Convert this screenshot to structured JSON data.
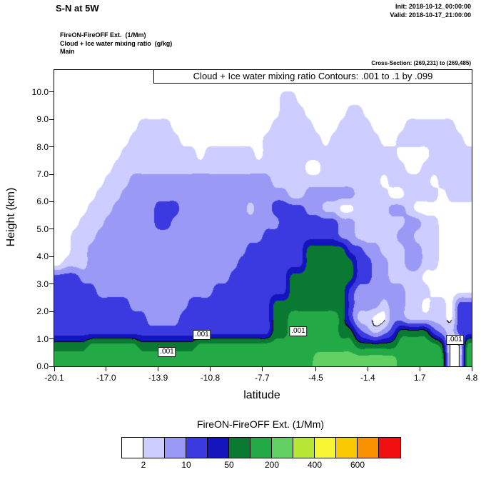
{
  "header": {
    "title": "S-N at 5W",
    "init_time": "Init: 2018-10-12_00:00:00",
    "valid_time": "Valid: 2018-10-17_21:00:00",
    "info_lines": [
      "FireON-FireOFF Ext.  (1/Mm)",
      "Cloud + Ice water mixing ratio  (g/kg)",
      "Main"
    ],
    "cross_section": "Cross-Section: (269,231) to (269,485)"
  },
  "chart_data": {
    "type": "heatmap",
    "title": "Cloud + Ice water mixing ratio Contours: .001 to .1 by .099",
    "xlabel": "latitude",
    "ylabel": "Height (km)",
    "xlim": [
      -20.1,
      4.8
    ],
    "ylim": [
      0,
      10.8
    ],
    "x_ticks": [
      -20.1,
      -17.0,
      -13.9,
      -10.8,
      -7.7,
      -4.5,
      -1.4,
      1.7,
      4.8
    ],
    "x_tick_labels": [
      "-20.1",
      "-17.0",
      "-13.9",
      "-10.8",
      "-7.7",
      "-4.5",
      "-1.4",
      "1.7",
      "4.8"
    ],
    "y_ticks": [
      0,
      1,
      2,
      3,
      4,
      5,
      6,
      7,
      8,
      9,
      10
    ],
    "y_tick_labels": [
      "0.0",
      "1.0",
      "2.0",
      "3.0",
      "4.0",
      "5.0",
      "6.0",
      "7.0",
      "8.0",
      "9.0",
      "10.0"
    ],
    "contour_labels": [
      ".001",
      ".001",
      ".001",
      ".001"
    ],
    "palette": [
      "#ffffff",
      "#cdcdff",
      "#9a9af6",
      "#3a3ae0",
      "#1414bc",
      "#0a7a32",
      "#23aa46",
      "#62d062",
      "#b8e634",
      "#f6f632",
      "#f8c800",
      "#f89000",
      "#f01010"
    ],
    "grid_alt_range": [
      0,
      11
    ],
    "grid": [
      "00000000000000000000000000000000000000000000000000",
      "00000000000000000000000000000000000000000000000000",
      "00000000000000000000000000011000000000000000000000",
      "00000000000000000000000000011100000110000000000000",
      "00000000001111000000000000111110001111000011111100",
      "00000000011111100000000001111111011111100111111110",
      "00000000111111111011111101111111111111111000011111",
      "00000001111111111111111111111100111111111100111111",
      "00000011122222222222222222111111111111101111101111",
      "00000111222222222222222222221122222211110011110111",
      "00001112222233322222222122333322110011112210000000",
      "00011122222233222222222222233333332211111122110000",
      "00111222222222222222222223333333332211111221110000",
      "00112222222222222222222333333355555332211122110000",
      "01112222222222222222223333333355555533221122110000",
      "33322222222222222222233333335555555533221111000000",
      "33333222222222222223333333335555555322222211100000",
      "33333333322222223333333333555555555322212211011033",
      "33333333333222233333333333556666665311002211111033",
      "33333333333333333333333333556666665532123555532133",
      "55556666665555555666666666666666666655555666665006",
      "66666666666666666666666666666667777777777666666006"
    ],
    "colorbar": {
      "title": "FireON-FireOFF Ext.  (1/Mm)",
      "tick_labels": [
        "2",
        "10",
        "50",
        "200",
        "400",
        "600"
      ],
      "tick_boundaries": [
        1,
        3,
        5,
        7,
        9,
        11
      ]
    }
  }
}
